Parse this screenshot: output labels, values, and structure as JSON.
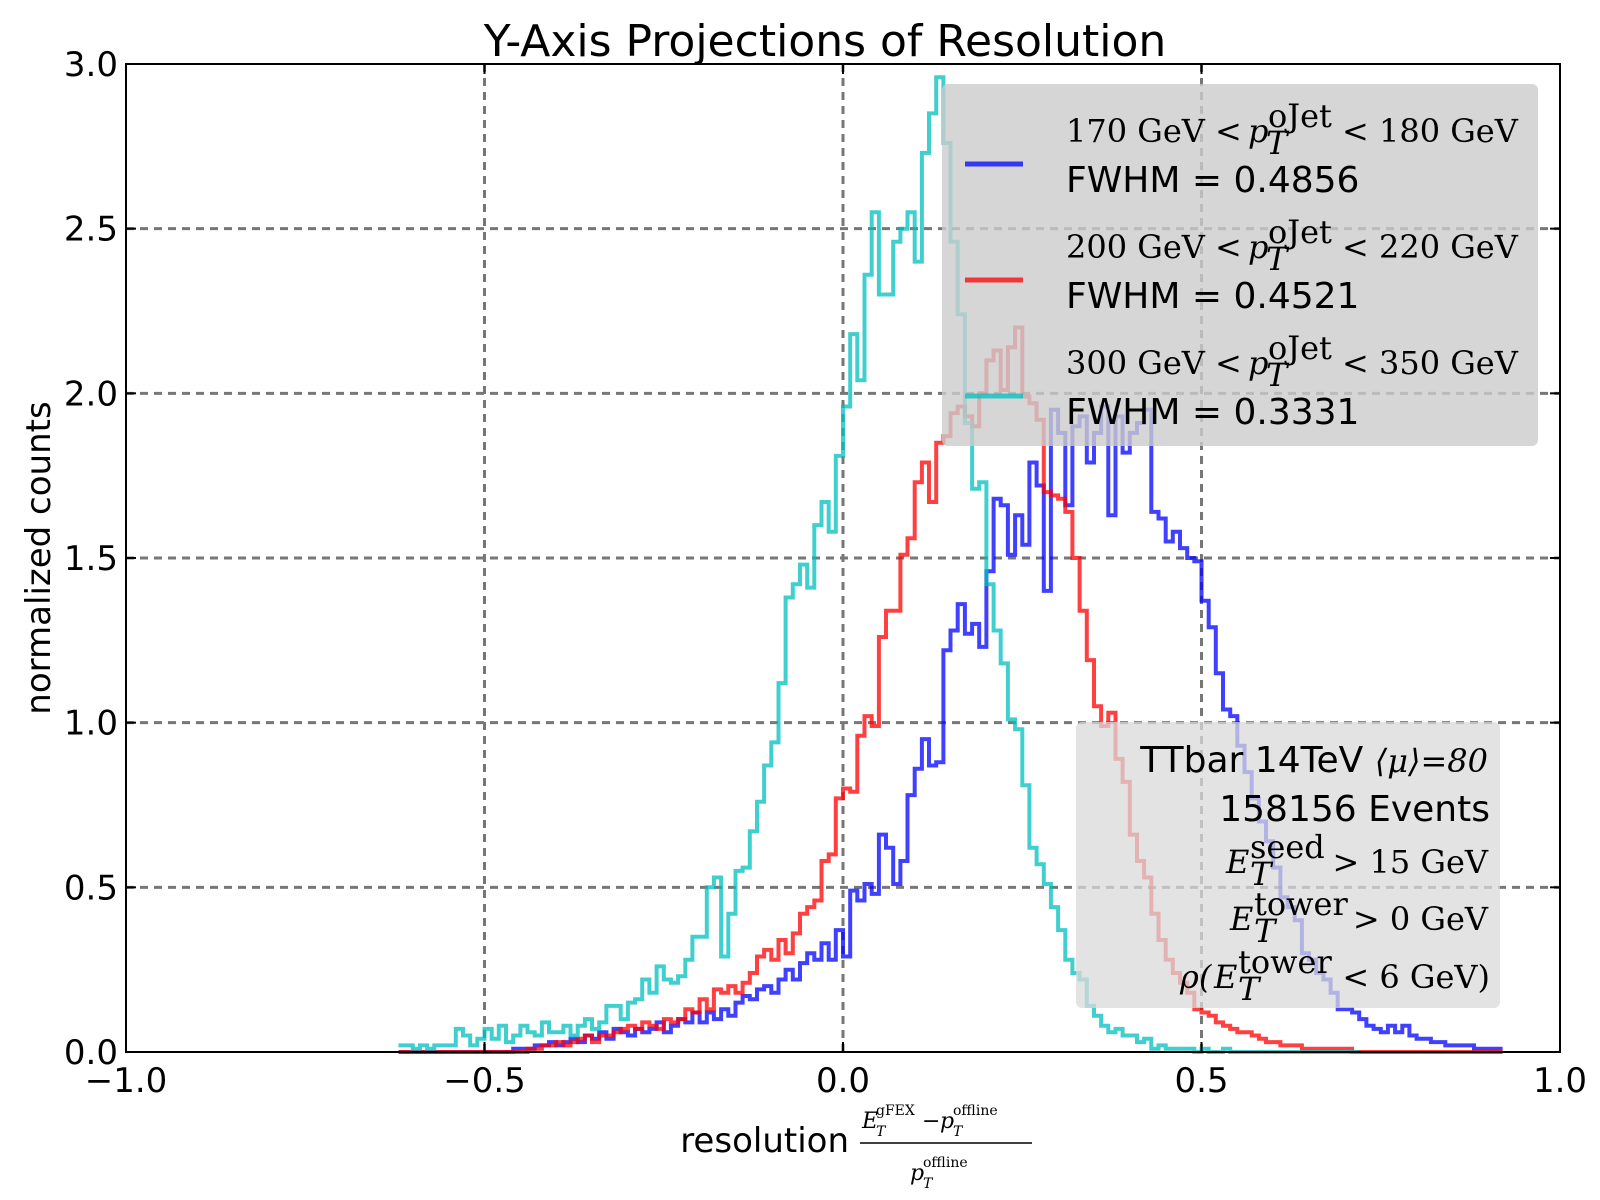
{
  "chart_data": {
    "type": "histogram",
    "title": "Y-Axis Projections of Resolution",
    "xlabel": {
      "prefix": "resolution",
      "numerator_a": "E",
      "numerator_a_sup": "gFEX",
      "numerator_a_sub": "T",
      "minus": "−",
      "numerator_b": "p",
      "numerator_b_sup": "offline",
      "numerator_b_sub": "T",
      "denominator": "p",
      "denominator_sup": "offline",
      "denominator_sub": "T"
    },
    "ylabel": "normalized counts",
    "xlim": [
      -1.0,
      1.0
    ],
    "ylim": [
      0.0,
      3.0
    ],
    "xticks": [
      -1.0,
      -0.5,
      0.0,
      0.5,
      1.0
    ],
    "xtick_labels": [
      "−1.0",
      "−0.5",
      "0.0",
      "0.5",
      "1.0"
    ],
    "yticks": [
      0.0,
      0.5,
      1.0,
      1.5,
      2.0,
      2.5,
      3.0
    ],
    "ytick_labels": [
      "0.0",
      "0.5",
      "1.0",
      "1.5",
      "2.0",
      "2.5",
      "3.0"
    ],
    "grid": true,
    "legend_position": "top-right",
    "bin_start": -0.62,
    "bin_width": 0.01,
    "series": [
      {
        "name": "170 GeV < p_T^oJet < 180 GeV",
        "label_lo": "170 GeV <",
        "label_sym": "p",
        "label_sup": "oJet",
        "label_sub": "T",
        "label_hi": "< 180 GeV",
        "fwhm_label": "FWHM = 0.4856",
        "color": "#0000ff",
        "values": [
          0.0,
          0.0,
          0.0,
          0.0,
          0.0,
          0.0,
          0.0,
          0.0,
          0.0,
          0.0,
          0.0,
          0.0,
          0.0,
          0.0,
          0.0,
          0.0,
          0.01,
          0.01,
          0.01,
          0.02,
          0.02,
          0.03,
          0.02,
          0.03,
          0.04,
          0.03,
          0.05,
          0.04,
          0.06,
          0.04,
          0.07,
          0.06,
          0.05,
          0.07,
          0.06,
          0.07,
          0.09,
          0.06,
          0.08,
          0.1,
          0.09,
          0.12,
          0.09,
          0.12,
          0.1,
          0.13,
          0.11,
          0.15,
          0.17,
          0.16,
          0.19,
          0.2,
          0.18,
          0.22,
          0.25,
          0.22,
          0.27,
          0.3,
          0.28,
          0.33,
          0.28,
          0.37,
          0.29,
          0.49,
          0.46,
          0.51,
          0.48,
          0.66,
          0.62,
          0.51,
          0.58,
          0.78,
          0.86,
          0.95,
          0.87,
          0.88,
          1.22,
          1.28,
          1.36,
          1.27,
          1.3,
          1.23,
          1.46,
          1.68,
          1.66,
          1.51,
          1.63,
          1.54,
          1.79,
          1.72,
          1.4,
          1.95,
          1.88,
          1.66,
          1.9,
          1.93,
          1.79,
          1.88,
          1.96,
          1.63,
          1.93,
          1.82,
          1.88,
          1.91,
          1.95,
          1.64,
          1.62,
          1.55,
          1.58,
          1.53,
          1.5,
          1.49,
          1.37,
          1.29,
          1.15,
          1.04,
          1.02,
          0.93,
          0.85,
          0.77,
          0.7,
          0.64,
          0.56,
          0.47,
          0.44,
          0.4,
          0.3,
          0.28,
          0.24,
          0.22,
          0.18,
          0.13,
          0.13,
          0.12,
          0.1,
          0.08,
          0.07,
          0.06,
          0.08,
          0.06,
          0.08,
          0.05,
          0.04,
          0.04,
          0.03,
          0.03,
          0.02,
          0.02,
          0.02,
          0.02,
          0.01,
          0.01,
          0.01,
          0.01
        ]
      },
      {
        "name": "200 GeV < p_T^oJet < 220 GeV",
        "label_lo": "200 GeV <",
        "label_sym": "p",
        "label_sup": "oJet",
        "label_sub": "T",
        "label_hi": "< 220 GeV",
        "fwhm_label": "FWHM = 0.4521",
        "color": "#ff0000",
        "values": [
          0.0,
          0.0,
          0.0,
          0.0,
          0.0,
          0.0,
          0.0,
          0.0,
          0.0,
          0.0,
          0.0,
          0.0,
          0.0,
          0.0,
          0.0,
          0.0,
          0.0,
          0.0,
          0.01,
          0.01,
          0.02,
          0.02,
          0.03,
          0.02,
          0.03,
          0.04,
          0.05,
          0.03,
          0.05,
          0.05,
          0.06,
          0.07,
          0.08,
          0.07,
          0.09,
          0.08,
          0.07,
          0.1,
          0.09,
          0.1,
          0.13,
          0.12,
          0.16,
          0.13,
          0.19,
          0.18,
          0.2,
          0.18,
          0.21,
          0.24,
          0.29,
          0.31,
          0.28,
          0.34,
          0.3,
          0.36,
          0.42,
          0.44,
          0.46,
          0.58,
          0.6,
          0.77,
          0.8,
          0.79,
          0.96,
          1.02,
          0.99,
          1.26,
          1.34,
          1.34,
          1.51,
          1.56,
          1.73,
          1.79,
          1.67,
          1.85,
          1.87,
          1.94,
          1.96,
          1.93,
          1.9,
          2.0,
          2.1,
          2.13,
          2.01,
          2.14,
          2.2,
          1.99,
          1.97,
          1.92,
          1.7,
          1.69,
          1.68,
          1.64,
          1.5,
          1.34,
          1.19,
          1.05,
          0.99,
          1.03,
          0.89,
          0.82,
          0.66,
          0.58,
          0.53,
          0.42,
          0.34,
          0.28,
          0.24,
          0.21,
          0.18,
          0.13,
          0.12,
          0.11,
          0.09,
          0.08,
          0.07,
          0.06,
          0.06,
          0.05,
          0.04,
          0.03,
          0.03,
          0.02,
          0.02,
          0.02,
          0.01,
          0.01,
          0.01,
          0.01,
          0.01,
          0.01,
          0.01,
          0.0,
          0.0,
          0.0,
          0.0,
          0.0,
          0.0,
          0.0,
          0.0,
          0.0,
          0.0,
          0.0,
          0.0,
          0.0,
          0.0,
          0.0,
          0.0,
          0.0,
          0.0,
          0.0,
          0.0,
          0.0
        ]
      },
      {
        "name": "300 GeV < p_T^oJet < 350 GeV",
        "label_lo": "300 GeV <",
        "label_sym": "p",
        "label_sup": "oJet",
        "label_sub": "T",
        "label_hi": "< 350 GeV",
        "fwhm_label": "FWHM = 0.3331",
        "color": "#00bfbf",
        "values": [
          0.02,
          0.02,
          0.01,
          0.02,
          0.01,
          0.02,
          0.02,
          0.02,
          0.07,
          0.05,
          0.02,
          0.04,
          0.07,
          0.04,
          0.08,
          0.03,
          0.05,
          0.08,
          0.06,
          0.05,
          0.09,
          0.06,
          0.06,
          0.08,
          0.05,
          0.08,
          0.1,
          0.07,
          0.09,
          0.14,
          0.14,
          0.1,
          0.15,
          0.16,
          0.22,
          0.18,
          0.26,
          0.22,
          0.21,
          0.23,
          0.28,
          0.35,
          0.35,
          0.5,
          0.53,
          0.29,
          0.42,
          0.55,
          0.56,
          0.67,
          0.76,
          0.87,
          0.94,
          1.12,
          1.38,
          1.42,
          1.48,
          1.41,
          1.6,
          1.67,
          1.58,
          1.81,
          1.96,
          2.18,
          2.04,
          2.36,
          2.55,
          2.3,
          2.3,
          2.46,
          2.5,
          2.55,
          2.4,
          2.73,
          2.85,
          2.96,
          2.76,
          2.46,
          2.24,
          1.91,
          1.71,
          1.73,
          1.42,
          1.28,
          1.18,
          1.01,
          0.98,
          0.81,
          0.62,
          0.57,
          0.51,
          0.44,
          0.37,
          0.28,
          0.24,
          0.22,
          0.14,
          0.11,
          0.08,
          0.06,
          0.07,
          0.05,
          0.05,
          0.03,
          0.04,
          0.01,
          0.02,
          0.01,
          0.01,
          0.01,
          0.01,
          0.0,
          0.01,
          0.0,
          0.0,
          0.01,
          0.0,
          0.0,
          0.0,
          0.0,
          0.0,
          0.0,
          0.0,
          0.0,
          0.0,
          0.0,
          0.0,
          0.0,
          0.0,
          0.0,
          0.0,
          0.0,
          0.0,
          0.0
        ]
      }
    ],
    "info_box": {
      "position": "bottom-right",
      "line1_text": "TTbar 14TeV ",
      "line1_math": "⟨μ⟩=80",
      "line2": "158156 Events",
      "line3_sym": "E",
      "line3_sup": "seed",
      "line3_sub": "T",
      "line3_tail": "> 15 GeV",
      "line4_sym": "E",
      "line4_sup": "tower",
      "line4_sub": "T",
      "line4_tail": "> 0 GeV",
      "line5_pre": "ρ(",
      "line5_sym": "E",
      "line5_sup": "tower",
      "line5_sub": "T",
      "line5_tail": "< 6 GeV)"
    }
  }
}
